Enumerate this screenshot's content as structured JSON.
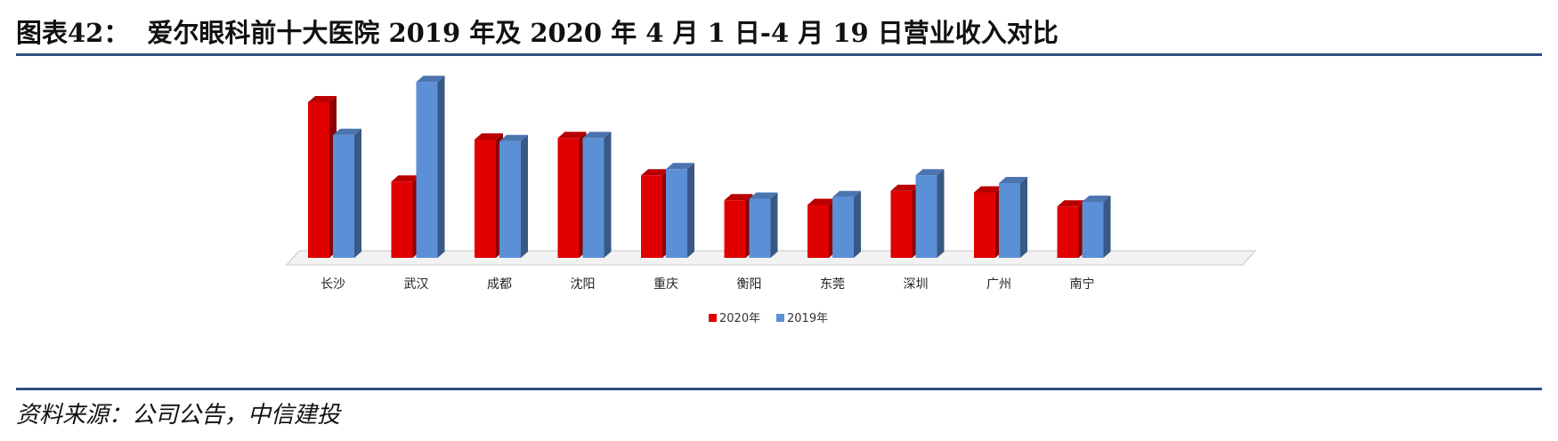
{
  "figure": {
    "label": "图表42：",
    "title": "爱尔眼科前十大医院 2019 年及 2020 年 4 月 1 日-4 月 19 日营业收入对比",
    "source": "资料来源：公司公告，中信建投"
  },
  "colors": {
    "series_2020": "#e10000",
    "series_2019": "#5b8fd6",
    "rule": "#2f4f7f"
  },
  "chart_data": {
    "type": "bar",
    "categories": [
      "长沙",
      "武汉",
      "成都",
      "沈阳",
      "重庆",
      "衡阳",
      "东莞",
      "深圳",
      "广州",
      "南宁"
    ],
    "series": [
      {
        "name": "2020年",
        "values": [
          100,
          49,
          76,
          77,
          53,
          37,
          34,
          43,
          42,
          33
        ]
      },
      {
        "name": "2019年",
        "values": [
          79,
          113,
          75,
          77,
          57,
          38,
          39,
          53,
          48,
          36
        ]
      }
    ],
    "ylim": [
      0,
      120
    ],
    "grid": false,
    "legend_position": "bottom"
  }
}
